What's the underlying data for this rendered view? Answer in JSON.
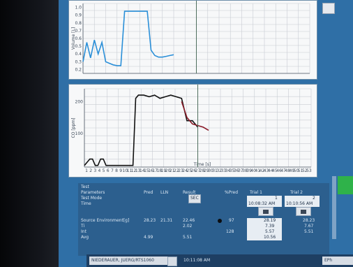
{
  "chart_data": [
    {
      "type": "line",
      "ylabel": "Volume [L]",
      "xlabel": "",
      "y_ticks": [
        "1.0",
        "0.9",
        "0.8",
        "0.7",
        "0.6",
        "0.5",
        "0.4",
        "0.3",
        "0.2"
      ],
      "series": [
        {
          "color": "#2a8fd8",
          "x": [
            0,
            1,
            2,
            3,
            4,
            5,
            6,
            7,
            8,
            9,
            10,
            11,
            12,
            13,
            14,
            15,
            16,
            17,
            18,
            19,
            20,
            21,
            22,
            23,
            24
          ],
          "y": [
            0.3,
            0.55,
            0.35,
            0.58,
            0.4,
            0.55,
            0.3,
            0.28,
            0.26,
            0.25,
            0.25,
            0.95,
            0.95,
            0.95,
            0.95,
            0.95,
            0.95,
            0.95,
            0.45,
            0.38,
            0.36,
            0.36,
            0.37,
            0.38,
            0.39
          ]
        }
      ]
    },
    {
      "type": "line",
      "ylabel": "CO [ppm]",
      "xlabel": "Time [s]",
      "y_ticks": [
        "200",
        "100"
      ],
      "x_ticks": [
        "1",
        "2",
        "3",
        "4",
        "5",
        "6",
        "7",
        "8",
        "9",
        "10",
        "11",
        "12",
        "13",
        "14",
        "15",
        "16",
        "17",
        "18",
        "19",
        "20",
        "21",
        "22",
        "23",
        "24",
        "25",
        "26",
        "27",
        "28",
        "29",
        "30",
        "31",
        "32",
        "33",
        "34",
        "35",
        "36",
        "37",
        "38",
        "39",
        "40",
        "41",
        "42",
        "43",
        "44",
        "45",
        "46",
        "47",
        "48",
        "49",
        "50",
        "51",
        "52",
        "53"
      ],
      "series": [
        {
          "color": "#111111",
          "x": [
            0,
            1,
            1.5,
            2,
            2.5,
            3,
            3.5,
            4,
            4.5,
            5,
            6,
            7,
            8,
            9,
            9.5,
            10,
            11,
            12,
            13,
            14,
            15,
            16,
            17,
            18,
            19,
            20,
            21
          ],
          "y": [
            0,
            20,
            20,
            0,
            0,
            20,
            20,
            0,
            0,
            0,
            0,
            0,
            0,
            0,
            210,
            220,
            220,
            215,
            220,
            210,
            215,
            220,
            215,
            210,
            140,
            140,
            120
          ]
        },
        {
          "color": "#8b1c2a",
          "x": [
            18,
            19,
            20,
            21,
            22,
            23
          ],
          "y": [
            200,
            150,
            130,
            125,
            120,
            110
          ]
        }
      ]
    }
  ],
  "table": {
    "section_label": "Test",
    "rows_labels": [
      "Parameters",
      "Test Mode",
      "Time",
      "",
      "Source Environment[g]",
      "Ti",
      "Int",
      "Avg"
    ],
    "col_headers": [
      "Pred",
      "LLN",
      "Result",
      "%Pred",
      "Trial 1",
      "Trial 2"
    ],
    "trial_index": [
      "1",
      "2"
    ],
    "trial1_time": "10:08:32 AM",
    "trial2_time": "10:10:56 AM",
    "result_button": "SEC",
    "values": {
      "pred": "28.23",
      "lln": "21.31",
      "result": "22.46",
      "pct_pred": "97",
      "t1_a": "28.19",
      "t1_b": "7.39",
      "t1_c": "5.57",
      "t1_d": "10.56",
      "t2_a": "28.23",
      "t2_b": "7.67",
      "t2_c": "5.51",
      "result2": "2.02",
      "result3": "5.51",
      "pred4": "4.99",
      "pct3": "128"
    }
  },
  "status": {
    "user": "NIEDERAUER, JUERG/RTS1060",
    "time": "10:11:08 AM",
    "right_label": "EPh"
  }
}
